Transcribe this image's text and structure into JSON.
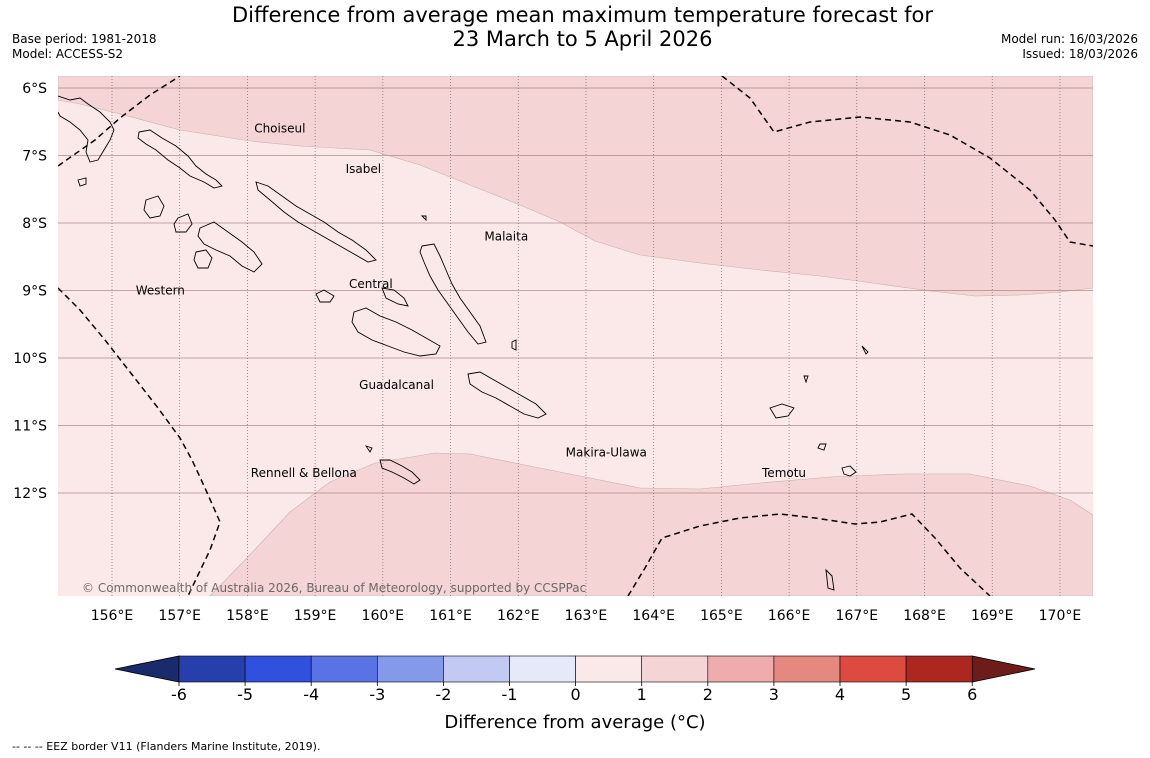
{
  "title_line1": "Difference from average mean maximum temperature forecast for",
  "title_line2": "23 March to 5 April 2026",
  "base_period": "Base period: 1981-2018",
  "model": "Model: ACCESS-S2",
  "model_run": "Model run: 16/03/2026",
  "issued": "Issued: 18/03/2026",
  "lat_labels": [
    "6°S",
    "7°S",
    "8°S",
    "9°S",
    "10°S",
    "11°S",
    "12°S"
  ],
  "lon_labels": [
    "156°E",
    "157°E",
    "158°E",
    "159°E",
    "160°E",
    "161°E",
    "162°E",
    "163°E",
    "164°E",
    "165°E",
    "166°E",
    "167°E",
    "168°E",
    "169°E",
    "170°E"
  ],
  "provinces": [
    {
      "name": "Choiseul",
      "lon": 158.1,
      "lat": -6.6
    },
    {
      "name": "Isabel",
      "lon": 159.45,
      "lat": -7.2
    },
    {
      "name": "Malaita",
      "lon": 161.5,
      "lat": -8.2
    },
    {
      "name": "Western",
      "lon": 156.35,
      "lat": -9.0
    },
    {
      "name": "Central",
      "lon": 159.5,
      "lat": -8.9
    },
    {
      "name": "Guadalcanal",
      "lon": 159.65,
      "lat": -10.4
    },
    {
      "name": "Makira-Ulawa",
      "lon": 162.7,
      "lat": -11.4
    },
    {
      "name": "Temotu",
      "lon": 165.6,
      "lat": -11.7
    },
    {
      "name": "Rennell & Bellona",
      "lon": 158.05,
      "lat": -11.7
    }
  ],
  "copyright": "© Commonwealth of Australia 2026, Bureau of Meteorology, supported by CCSPPac",
  "colorbar": {
    "ticks": [
      "-6",
      "-5",
      "-4",
      "-3",
      "-2",
      "-1",
      "0",
      "1",
      "2",
      "3",
      "4",
      "5",
      "6"
    ],
    "colors": [
      "#273fad",
      "#3050de",
      "#5a73e4",
      "#8599ea",
      "#c2c9f2",
      "#e6e9fa",
      "#fbe9e9",
      "#f4d4d4",
      "#eeacac",
      "#e58880",
      "#dc4a40",
      "#ab2720"
    ],
    "under_color": "#1a2b6d",
    "over_color": "#6e1c1a",
    "label": "Difference from average (°C)"
  },
  "map_fills": {
    "category_0_to_1": "#fbe9e9",
    "category_1_to_2": "#f4d4d4"
  },
  "legend_note": "--  --  -- EEZ border V11 (Flanders Marine Institute, 2019)."
}
